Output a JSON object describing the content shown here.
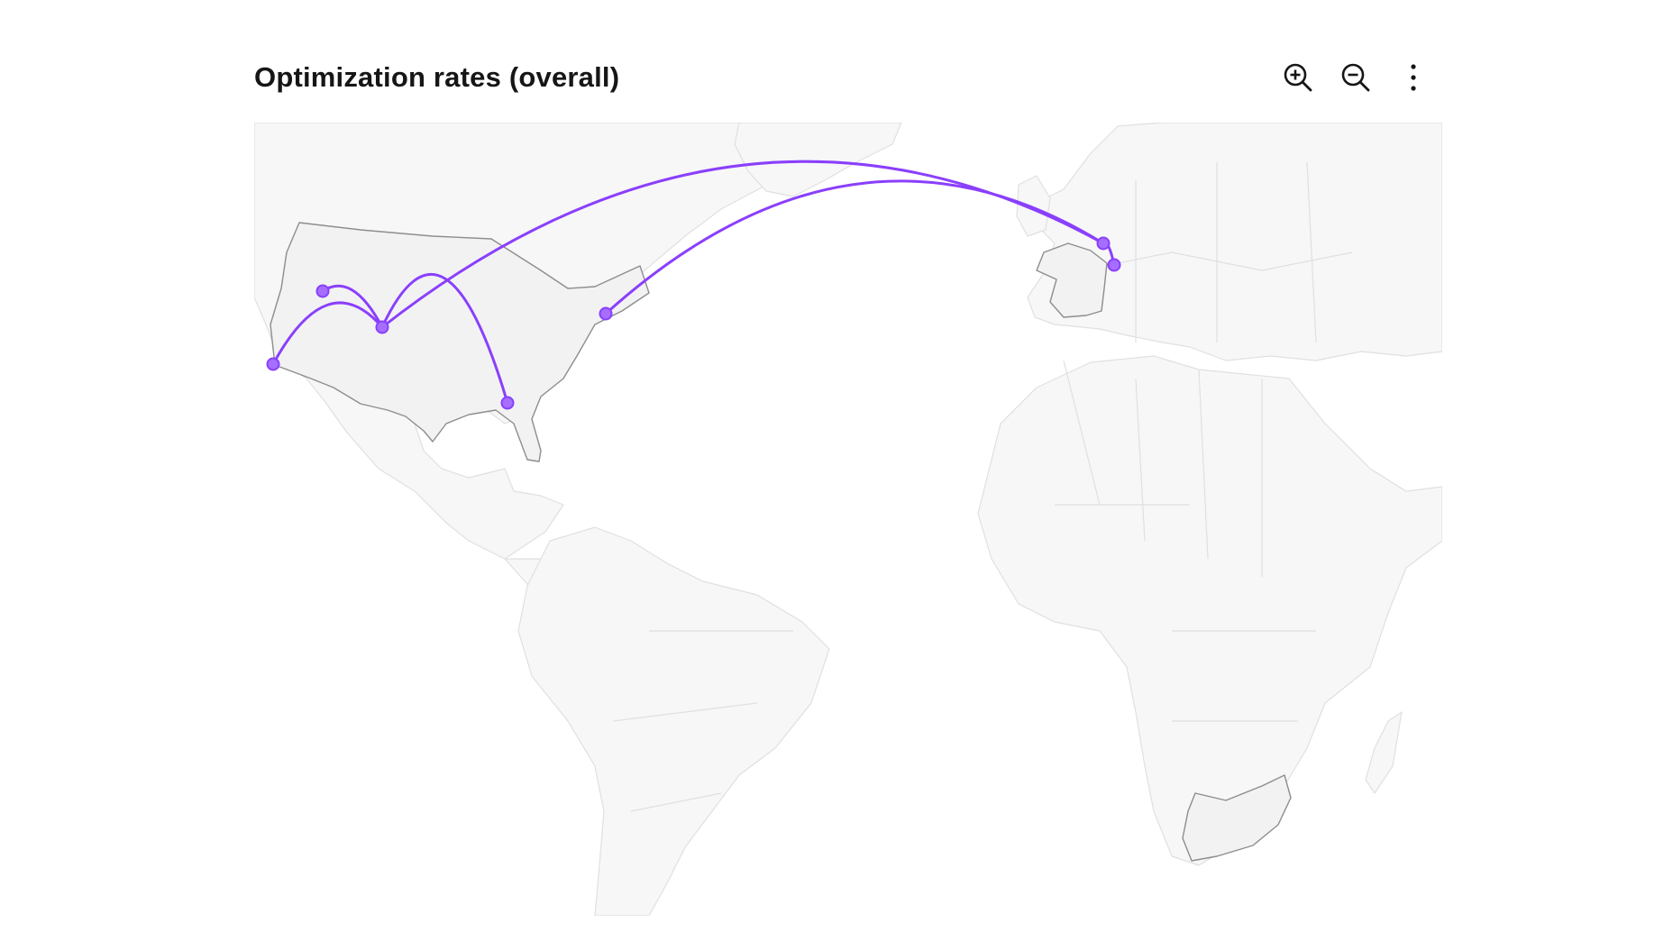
{
  "header": {
    "title": "Optimization rates (overall)"
  },
  "toolbar": {
    "buttons": [
      {
        "name": "zoom-in-button",
        "icon": "zoom-in-icon"
      },
      {
        "name": "zoom-out-button",
        "icon": "zoom-out-icon"
      },
      {
        "name": "overflow-menu-button",
        "icon": "overflow-menu-vertical-icon"
      }
    ]
  },
  "map": {
    "projection": "mercator",
    "highlighted_regions": [
      "United States",
      "France",
      "South Africa"
    ],
    "colors": {
      "land": "#f7f7f7",
      "land_border": "#e0e0e0",
      "highlight": "#f2f2f2",
      "highlight_border": "#8d8d8d",
      "arc": "#8a3ffc",
      "node": "#a56eff"
    },
    "connections": [
      {
        "from": "Salt Lake City",
        "to": "Denver"
      },
      {
        "from": "Los Angeles",
        "to": "Denver"
      },
      {
        "from": "Denver",
        "to": "Tallahassee"
      },
      {
        "from": "Denver",
        "to": "Brussels"
      },
      {
        "from": "New York",
        "to": "Brussels"
      },
      {
        "from": "Brussels",
        "to": "Strasbourg"
      }
    ]
  }
}
